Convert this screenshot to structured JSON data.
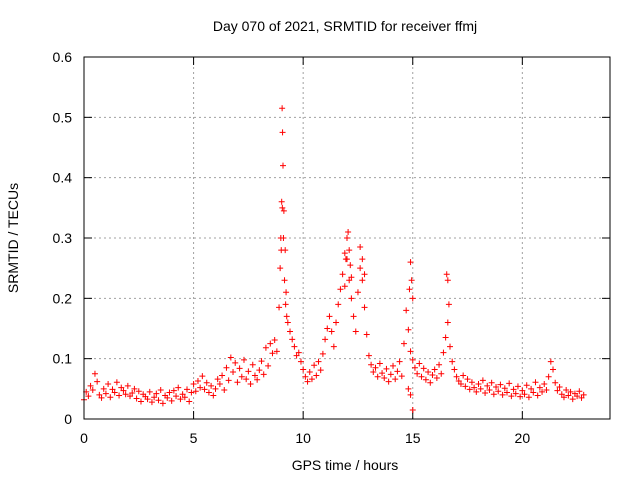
{
  "chart_data": {
    "type": "scatter",
    "title": "Day 070 of 2021, SRMTID for receiver ffmj",
    "xlabel": "GPS time / hours",
    "ylabel": "SRMTID / TECUs",
    "xlim": [
      0,
      24
    ],
    "ylim": [
      0,
      0.6
    ],
    "x_ticks": [
      0,
      5,
      10,
      15,
      20
    ],
    "x_tick_labels": [
      "0",
      "5",
      "10",
      "15",
      "20"
    ],
    "y_ticks": [
      0,
      0.1,
      0.2,
      0.3,
      0.4,
      0.5,
      0.6
    ],
    "y_tick_labels": [
      "0",
      "0.1",
      "0.2",
      "0.3",
      "0.4",
      "0.5",
      "0.6"
    ],
    "grid": true,
    "marker": "+",
    "color": "#ff0000",
    "series": [
      {
        "name": "SRMTID",
        "x": [
          0.0,
          0.1,
          0.2,
          0.3,
          0.4,
          0.5,
          0.6,
          0.7,
          0.8,
          0.9,
          1.0,
          1.1,
          1.2,
          1.3,
          1.4,
          1.5,
          1.6,
          1.7,
          1.8,
          1.9,
          2.0,
          2.1,
          2.2,
          2.3,
          2.4,
          2.5,
          2.6,
          2.7,
          2.8,
          2.9,
          3.0,
          3.1,
          3.2,
          3.3,
          3.4,
          3.5,
          3.6,
          3.7,
          3.8,
          3.9,
          4.0,
          4.1,
          4.2,
          4.3,
          4.4,
          4.5,
          4.6,
          4.7,
          4.8,
          4.9,
          5.0,
          5.1,
          5.2,
          5.3,
          5.4,
          5.5,
          5.6,
          5.7,
          5.8,
          5.9,
          6.0,
          6.1,
          6.2,
          6.3,
          6.4,
          6.5,
          6.6,
          6.7,
          6.8,
          6.9,
          7.0,
          7.1,
          7.2,
          7.3,
          7.4,
          7.5,
          7.6,
          7.7,
          7.8,
          7.9,
          8.0,
          8.1,
          8.2,
          8.3,
          8.4,
          8.5,
          8.6,
          8.7,
          8.8,
          8.9,
          9.0,
          9.05,
          9.1,
          9.15,
          9.2,
          9.3,
          9.4,
          9.5,
          9.6,
          9.7,
          9.8,
          9.9,
          10.0,
          10.1,
          10.2,
          10.3,
          10.4,
          10.5,
          10.6,
          10.7,
          10.8,
          10.9,
          11.0,
          11.1,
          11.2,
          11.3,
          11.4,
          11.5,
          11.6,
          11.7,
          11.8,
          11.9,
          12.0,
          12.1,
          12.2,
          12.3,
          12.4,
          12.5,
          12.6,
          12.7,
          12.8,
          12.9,
          13.0,
          13.1,
          13.2,
          13.3,
          13.4,
          13.5,
          13.6,
          13.7,
          13.8,
          13.9,
          14.0,
          14.1,
          14.2,
          14.3,
          14.4,
          14.5,
          14.6,
          14.7,
          14.8,
          14.9,
          15.0,
          15.1,
          15.2,
          15.3,
          15.4,
          15.5,
          15.6,
          15.7,
          15.8,
          15.9,
          16.0,
          16.1,
          16.2,
          16.3,
          16.4,
          16.5,
          16.6,
          16.7,
          16.8,
          16.9,
          17.0,
          17.1,
          17.2,
          17.3,
          17.4,
          17.5,
          17.6,
          17.7,
          17.8,
          17.9,
          18.0,
          18.1,
          18.2,
          18.3,
          18.4,
          18.5,
          18.6,
          18.7,
          18.8,
          18.9,
          19.0,
          19.1,
          19.2,
          19.3,
          19.4,
          19.5,
          19.6,
          19.7,
          19.8,
          19.9,
          20.0,
          20.1,
          20.2,
          20.3,
          20.4,
          20.5,
          20.6,
          20.7,
          20.8,
          20.9,
          21.0,
          21.1,
          21.2,
          21.3,
          21.4,
          21.5,
          21.6,
          21.7,
          21.8,
          21.9,
          22.0,
          22.1,
          22.2,
          22.3,
          22.4,
          22.5,
          22.6,
          22.7,
          22.8,
          9.02,
          9.04,
          9.06,
          9.08,
          9.12,
          9.18,
          9.22,
          9.25,
          8.95,
          8.98,
          12.0,
          12.05,
          12.1,
          12.15,
          11.95,
          12.2,
          11.9,
          12.6,
          12.7,
          12.8,
          14.85,
          14.9,
          14.95,
          15.0,
          16.55,
          16.6,
          16.65,
          15.0,
          14.9,
          14.8
        ],
        "y": [
          0.032,
          0.045,
          0.038,
          0.055,
          0.048,
          0.075,
          0.062,
          0.04,
          0.035,
          0.05,
          0.042,
          0.058,
          0.036,
          0.049,
          0.044,
          0.061,
          0.039,
          0.052,
          0.047,
          0.041,
          0.055,
          0.038,
          0.043,
          0.05,
          0.034,
          0.046,
          0.029,
          0.041,
          0.037,
          0.033,
          0.045,
          0.028,
          0.036,
          0.042,
          0.031,
          0.048,
          0.026,
          0.039,
          0.035,
          0.044,
          0.03,
          0.047,
          0.038,
          0.052,
          0.033,
          0.041,
          0.036,
          0.049,
          0.029,
          0.044,
          0.058,
          0.046,
          0.063,
          0.052,
          0.071,
          0.049,
          0.06,
          0.044,
          0.055,
          0.039,
          0.05,
          0.066,
          0.058,
          0.072,
          0.048,
          0.085,
          0.064,
          0.102,
          0.078,
          0.093,
          0.061,
          0.084,
          0.07,
          0.098,
          0.066,
          0.079,
          0.058,
          0.09,
          0.072,
          0.065,
          0.081,
          0.096,
          0.074,
          0.118,
          0.088,
          0.125,
          0.109,
          0.131,
          0.112,
          0.185,
          0.28,
          0.35,
          0.3,
          0.23,
          0.19,
          0.16,
          0.145,
          0.132,
          0.12,
          0.105,
          0.11,
          0.095,
          0.082,
          0.07,
          0.062,
          0.078,
          0.066,
          0.089,
          0.072,
          0.095,
          0.081,
          0.108,
          0.132,
          0.15,
          0.17,
          0.145,
          0.12,
          0.16,
          0.19,
          0.215,
          0.24,
          0.275,
          0.265,
          0.23,
          0.2,
          0.17,
          0.145,
          0.21,
          0.25,
          0.23,
          0.185,
          0.14,
          0.105,
          0.09,
          0.078,
          0.085,
          0.07,
          0.092,
          0.076,
          0.068,
          0.083,
          0.062,
          0.074,
          0.088,
          0.066,
          0.079,
          0.095,
          0.071,
          0.125,
          0.18,
          0.148,
          0.112,
          0.098,
          0.085,
          0.075,
          0.092,
          0.07,
          0.084,
          0.065,
          0.078,
          0.06,
          0.073,
          0.082,
          0.068,
          0.09,
          0.075,
          0.11,
          0.135,
          0.16,
          0.12,
          0.095,
          0.082,
          0.07,
          0.063,
          0.058,
          0.072,
          0.054,
          0.066,
          0.049,
          0.061,
          0.052,
          0.045,
          0.058,
          0.05,
          0.064,
          0.043,
          0.055,
          0.048,
          0.06,
          0.041,
          0.053,
          0.046,
          0.057,
          0.04,
          0.051,
          0.044,
          0.059,
          0.038,
          0.049,
          0.042,
          0.054,
          0.037,
          0.047,
          0.041,
          0.056,
          0.036,
          0.05,
          0.044,
          0.061,
          0.039,
          0.052,
          0.045,
          0.058,
          0.048,
          0.07,
          0.095,
          0.082,
          0.06,
          0.047,
          0.053,
          0.041,
          0.036,
          0.048,
          0.039,
          0.045,
          0.033,
          0.042,
          0.038,
          0.046,
          0.035,
          0.04,
          0.36,
          0.515,
          0.475,
          0.42,
          0.345,
          0.28,
          0.21,
          0.17,
          0.25,
          0.3,
          0.3,
          0.31,
          0.28,
          0.255,
          0.265,
          0.235,
          0.22,
          0.285,
          0.265,
          0.24,
          0.215,
          0.26,
          0.23,
          0.2,
          0.24,
          0.23,
          0.19,
          0.015,
          0.04,
          0.05
        ]
      }
    ]
  }
}
